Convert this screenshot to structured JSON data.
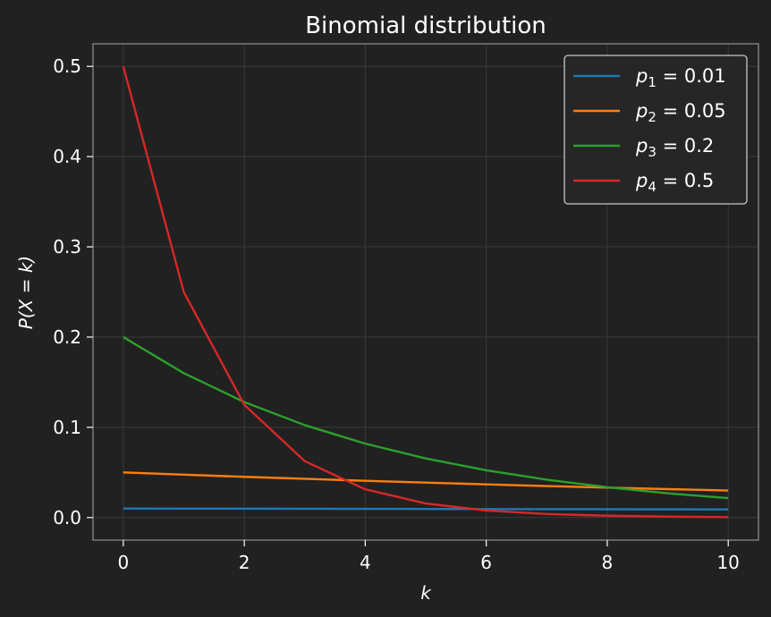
{
  "chart_data": {
    "type": "line",
    "title": "Binomial distribution",
    "xlabel": "k",
    "ylabel": "P(X = k)",
    "xlim": [
      -0.5,
      10.5
    ],
    "ylim": [
      -0.025,
      0.525
    ],
    "xticks": [
      0,
      2,
      4,
      6,
      8,
      10
    ],
    "xtick_labels": [
      "0",
      "2",
      "4",
      "6",
      "8",
      "10"
    ],
    "yticks": [
      0.0,
      0.1,
      0.2,
      0.3,
      0.4,
      0.5
    ],
    "ytick_labels": [
      "0.0",
      "0.1",
      "0.2",
      "0.3",
      "0.4",
      "0.5"
    ],
    "grid": true,
    "legend_position": "top-right",
    "x": [
      0,
      1,
      2,
      3,
      4,
      5,
      6,
      7,
      8,
      9,
      10
    ],
    "series": [
      {
        "name": "p1 = 0.01",
        "legend_var": "p",
        "legend_sub": "1",
        "legend_rest": " = 0.01",
        "color": "#1f77b4",
        "values": [
          0.01,
          0.0099,
          0.0098,
          0.0097,
          0.0096,
          0.0095,
          0.0094,
          0.0093,
          0.0092,
          0.0091,
          0.009
        ]
      },
      {
        "name": "p2 = 0.05",
        "legend_var": "p",
        "legend_sub": "2",
        "legend_rest": " = 0.05",
        "color": "#ff7f0e",
        "values": [
          0.05,
          0.0475,
          0.0451,
          0.0429,
          0.0407,
          0.0387,
          0.0368,
          0.0349,
          0.0332,
          0.0315,
          0.0299
        ]
      },
      {
        "name": "p3 = 0.2",
        "legend_var": "p",
        "legend_sub": "3",
        "legend_rest": " = 0.2",
        "color": "#2ca02c",
        "values": [
          0.2,
          0.16,
          0.128,
          0.1024,
          0.0819,
          0.0655,
          0.0524,
          0.0419,
          0.0336,
          0.0268,
          0.0215
        ]
      },
      {
        "name": "p4 = 0.5",
        "legend_var": "p",
        "legend_sub": "4",
        "legend_rest": " = 0.5",
        "color": "#d62728",
        "values": [
          0.5,
          0.25,
          0.125,
          0.0625,
          0.0313,
          0.0156,
          0.0078,
          0.0039,
          0.002,
          0.001,
          0.0005
        ]
      }
    ]
  }
}
